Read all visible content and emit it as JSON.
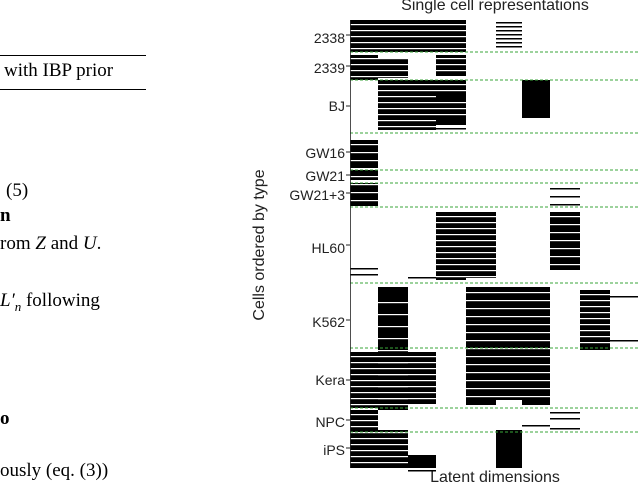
{
  "paper_fragment": {
    "caption_tail": "with IBP prior",
    "eq_number": "(5)",
    "bold_fragment_1": "n",
    "line_from": "rom ",
    "var_z": "Z",
    "word_and": " and ",
    "var_u": "U",
    "period": ".",
    "l_prime": "L′",
    "l_sub": "n",
    "following": " following",
    "bold_fragment_2": "o",
    "ously_text": "ously (eq. (3))"
  },
  "figure": {
    "title": "Single cell representations",
    "xlabel": "Latent dimensions",
    "ylabel": "Cells ordered by type"
  },
  "chart_data": {
    "type": "heatmap",
    "title": "Single cell representations",
    "xlabel": "Latent dimensions",
    "ylabel": "Cells ordered by type",
    "cell_types": [
      "2338",
      "2339",
      "BJ",
      "GW16",
      "GW21",
      "GW21+3",
      "HL60",
      "K562",
      "Kera",
      "NPC",
      "iPS"
    ],
    "colors": {
      "active": "#000000",
      "inactive": "#ffffff",
      "separator": "#3aa63a"
    },
    "grid": false,
    "legend": "none"
  }
}
